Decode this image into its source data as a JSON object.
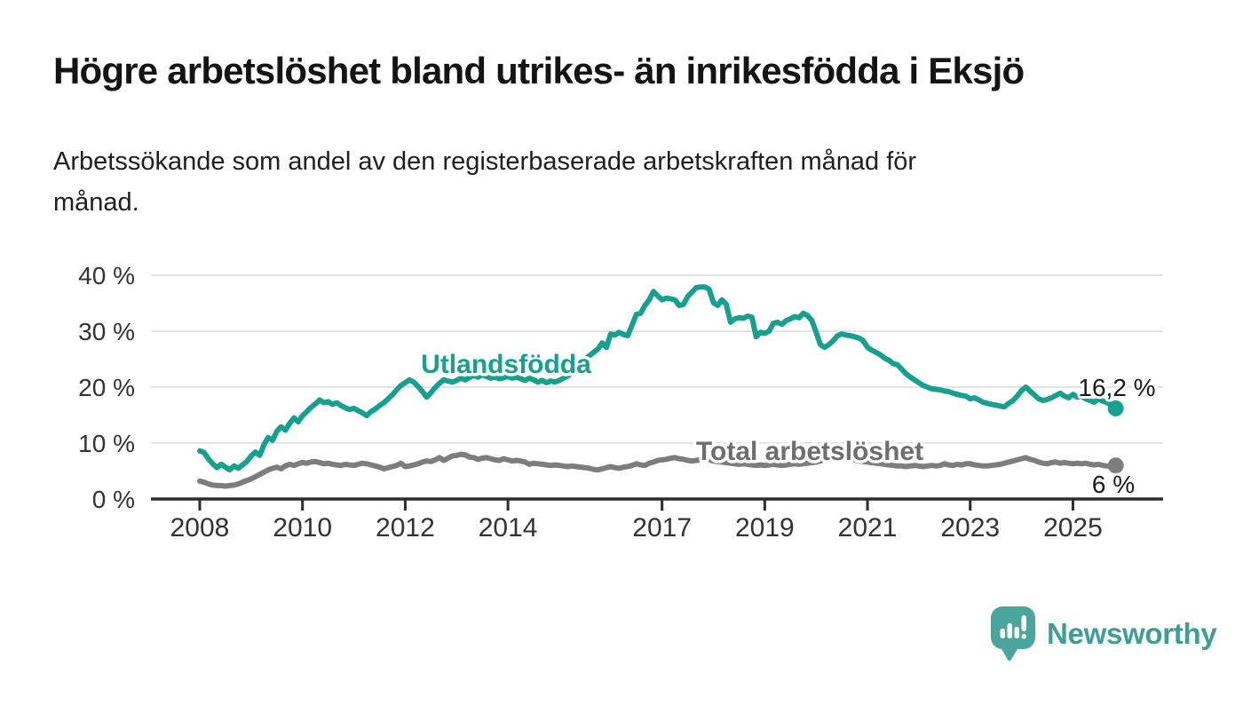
{
  "header": {
    "title": "Högre arbetslöshet bland utrikes- än inrikesfödda i Eksjö",
    "subtitle": "Arbetssökande som andel av den registerbaserade arbetskraften månad för\nmånad."
  },
  "footer": {
    "brand": "Newsworthy",
    "logo_icon": "speech-bubble-bar-chart-icon"
  },
  "colors": {
    "utlandsfodda_line": "#18A08F",
    "total_line": "#7D7D7D",
    "total_label": "#6E6E6E",
    "axis": "#2D2D2D",
    "grid": "#DCDCDC",
    "value_label": "#1A1A1A",
    "brand_teal": "#3F9D95",
    "logo_bubble": "#4BA59D"
  },
  "chart_data": {
    "type": "line",
    "frequency": "monthly",
    "x_start": "2008-01",
    "x_end": "2025-11",
    "ylim": [
      0,
      42
    ],
    "grid": "horizontal",
    "legend": "inline-labels",
    "y_ticks": [
      {
        "value": 0,
        "label": "0 %"
      },
      {
        "value": 10,
        "label": "10 %"
      },
      {
        "value": 20,
        "label": "20 %"
      },
      {
        "value": 30,
        "label": "30 %"
      },
      {
        "value": 40,
        "label": "40 %"
      }
    ],
    "x_ticks": [
      {
        "year": 2008,
        "label": "2008"
      },
      {
        "year": 2010,
        "label": "2010"
      },
      {
        "year": 2012,
        "label": "2012"
      },
      {
        "year": 2014,
        "label": "2014"
      },
      {
        "year": 2017,
        "label": "2017"
      },
      {
        "year": 2019,
        "label": "2019"
      },
      {
        "year": 2021,
        "label": "2021"
      },
      {
        "year": 2023,
        "label": "2023"
      },
      {
        "year": 2025,
        "label": "2025"
      }
    ],
    "series": [
      {
        "name": "Utlandsfödda",
        "color": "#18A08F",
        "end_label": "16,2 %",
        "end_value": 16.2,
        "values": [
          8.6,
          8.3,
          7.2,
          6.3,
          5.6,
          6.2,
          5.7,
          5.2,
          5.9,
          5.5,
          6.1,
          6.7,
          7.7,
          8.4,
          7.8,
          9.7,
          11.0,
          10.5,
          12.1,
          12.9,
          12.3,
          13.5,
          14.5,
          13.8,
          14.9,
          15.6,
          16.4,
          17.0,
          17.7,
          17.2,
          17.4,
          16.9,
          17.2,
          16.7,
          16.3,
          16.0,
          16.2,
          15.8,
          15.4,
          14.9,
          15.6,
          16.1,
          16.7,
          17.2,
          17.9,
          18.6,
          19.5,
          20.3,
          20.8,
          21.3,
          20.9,
          20.1,
          19.2,
          18.2,
          19.0,
          19.9,
          20.7,
          21.3,
          21.1,
          20.9,
          21.2,
          21.6,
          21.3,
          21.7,
          22.1,
          21.8,
          22.2,
          21.9,
          21.6,
          21.8,
          21.5,
          21.7,
          21.9,
          21.6,
          21.8,
          21.5,
          21.2,
          21.6,
          21.3,
          20.9,
          21.2,
          20.8,
          21.1,
          20.9,
          21.2,
          21.6,
          22.0,
          22.6,
          23.3,
          24.0,
          25.0,
          25.6,
          26.2,
          26.8,
          27.9,
          27.1,
          29.5,
          29.3,
          29.8,
          29.4,
          29.2,
          31.1,
          33.0,
          33.2,
          34.6,
          35.6,
          37.1,
          36.3,
          35.6,
          35.9,
          35.8,
          35.6,
          34.6,
          34.8,
          36.2,
          37.0,
          37.8,
          37.9,
          37.9,
          37.5,
          35.1,
          34.6,
          35.6,
          34.8,
          31.6,
          32.2,
          32.4,
          32.3,
          32.7,
          32.5,
          29.0,
          29.8,
          29.6,
          30.0,
          31.4,
          31.6,
          31.2,
          31.9,
          32.2,
          32.6,
          32.4,
          33.2,
          32.8,
          31.9,
          29.8,
          27.6,
          27.1,
          27.6,
          28.3,
          29.2,
          29.5,
          29.3,
          29.2,
          29.0,
          28.8,
          28.3,
          27.1,
          26.6,
          26.2,
          25.8,
          25.2,
          24.8,
          24.2,
          24.0,
          23.2,
          22.4,
          21.8,
          21.3,
          20.8,
          20.3,
          20.0,
          19.7,
          19.6,
          19.5,
          19.3,
          19.2,
          18.9,
          18.7,
          18.5,
          18.4,
          17.9,
          18.1,
          17.7,
          17.3,
          17.1,
          16.9,
          16.8,
          16.6,
          16.5,
          17.1,
          17.6,
          18.4,
          19.4,
          20.0,
          19.3,
          18.6,
          17.9,
          17.6,
          17.8,
          18.1,
          18.5,
          18.9,
          18.4,
          18.1,
          18.7,
          18.2,
          18.4,
          17.9,
          17.6,
          17.3,
          17.9,
          17.5,
          17.2,
          16.8,
          16.2
        ]
      },
      {
        "name": "Total arbetslöshet",
        "color": "#7D7D7D",
        "end_label": "6 %",
        "end_value": 6.0,
        "values": [
          3.2,
          3.0,
          2.7,
          2.5,
          2.4,
          2.4,
          2.3,
          2.4,
          2.5,
          2.7,
          3.0,
          3.3,
          3.6,
          4.0,
          4.4,
          4.8,
          5.2,
          5.5,
          5.7,
          5.4,
          5.9,
          6.2,
          6.0,
          6.3,
          6.5,
          6.4,
          6.6,
          6.7,
          6.5,
          6.3,
          6.4,
          6.2,
          6.1,
          6.0,
          6.2,
          6.1,
          6.0,
          6.2,
          6.4,
          6.3,
          6.1,
          5.9,
          5.7,
          5.4,
          5.6,
          5.8,
          6.0,
          6.4,
          5.8,
          5.9,
          6.1,
          6.3,
          6.6,
          6.8,
          6.7,
          7.0,
          7.4,
          6.9,
          7.3,
          7.7,
          7.8,
          8.0,
          7.9,
          7.5,
          7.4,
          7.1,
          7.3,
          7.4,
          7.2,
          7.0,
          6.9,
          7.2,
          7.0,
          6.8,
          6.9,
          6.8,
          6.6,
          6.2,
          6.4,
          6.3,
          6.2,
          6.1,
          6.0,
          6.1,
          6.0,
          5.9,
          5.8,
          5.9,
          5.8,
          5.7,
          5.6,
          5.5,
          5.3,
          5.2,
          5.4,
          5.6,
          5.8,
          5.6,
          5.5,
          5.7,
          5.8,
          6.0,
          6.3,
          6.1,
          6.0,
          6.4,
          6.6,
          6.9,
          7.0,
          7.1,
          7.3,
          7.4,
          7.2,
          7.1,
          6.9,
          6.8,
          6.9,
          7.0,
          7.1,
          7.0,
          6.8,
          6.7,
          6.6,
          6.5,
          6.4,
          6.3,
          6.2,
          6.3,
          6.2,
          6.1,
          6.0,
          6.1,
          6.0,
          6.1,
          6.2,
          6.1,
          6.0,
          6.1,
          6.2,
          6.3,
          6.2,
          6.3,
          6.4,
          6.5,
          6.6,
          6.8,
          7.2,
          7.5,
          7.6,
          7.7,
          7.6,
          7.4,
          7.2,
          7.0,
          6.8,
          6.7,
          6.6,
          6.5,
          6.4,
          6.3,
          6.2,
          6.1,
          6.0,
          5.9,
          5.9,
          5.8,
          5.9,
          6.0,
          5.9,
          5.8,
          5.9,
          6.0,
          5.9,
          6.0,
          6.3,
          6.1,
          6.0,
          6.2,
          6.1,
          6.3,
          6.3,
          6.1,
          6.0,
          5.9,
          5.9,
          6.0,
          6.1,
          6.2,
          6.4,
          6.6,
          6.8,
          7.0,
          7.2,
          7.4,
          7.1,
          6.9,
          6.6,
          6.4,
          6.3,
          6.5,
          6.6,
          6.4,
          6.5,
          6.4,
          6.3,
          6.4,
          6.3,
          6.4,
          6.2,
          6.1,
          6.2,
          6.0,
          5.9,
          5.8,
          6.0
        ]
      }
    ]
  }
}
